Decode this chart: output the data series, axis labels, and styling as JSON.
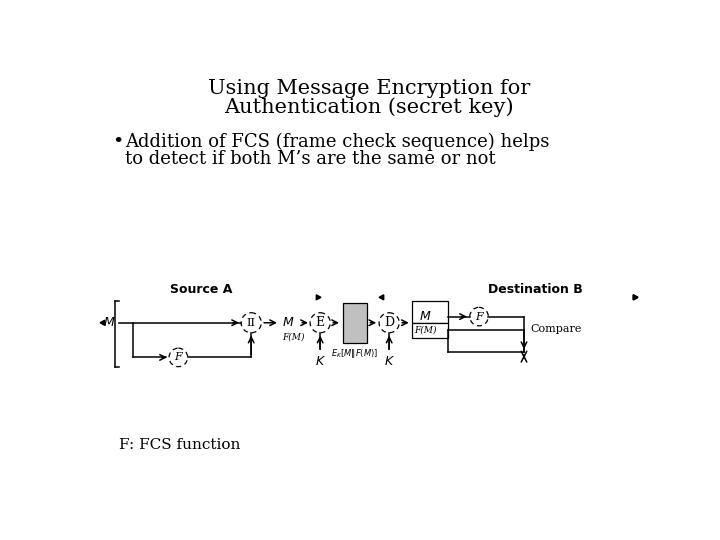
{
  "title_line1": "Using Message Encryption for",
  "title_line2": "Authentication (secret key)",
  "bullet_line1": "Addition of FCS (frame check sequence) helps",
  "bullet_line2": "to detect if both M’s are the same or not",
  "footnote": "F: FCS function",
  "bg_color": "#ffffff",
  "gray_fill": "#c0c0c0",
  "source_label": "Source A",
  "dest_label": "Destination B",
  "title_fontsize": 15,
  "bullet_fontsize": 13,
  "footnote_fontsize": 11,
  "label_fontsize": 8,
  "small_fontsize": 7
}
